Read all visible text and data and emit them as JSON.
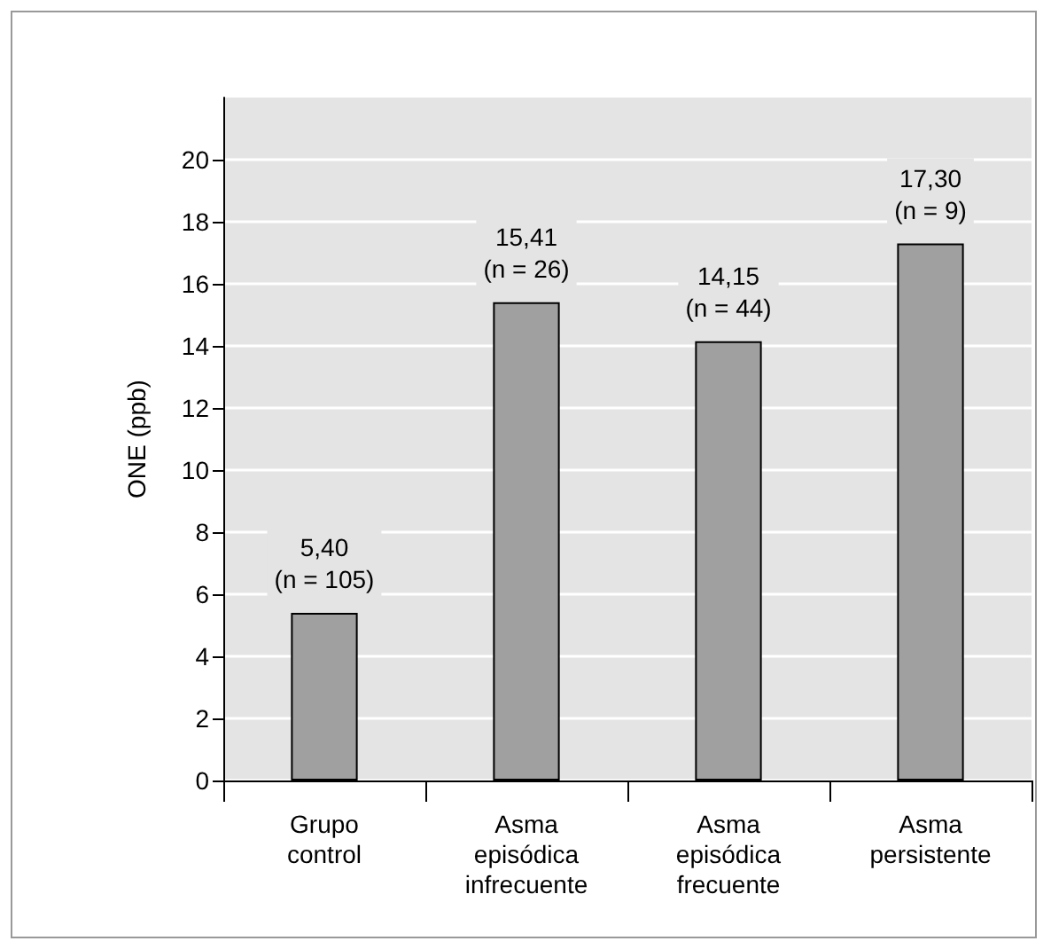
{
  "chart_data": {
    "type": "bar",
    "ylabel": "ONE (ppb)",
    "categories": [
      "Grupo\ncontrol",
      "Asma\nepisódica\ninfrecuente",
      "Asma\nepisódica\nfrecuente",
      "Asma\npersistente"
    ],
    "values": [
      5.4,
      15.41,
      14.15,
      17.3
    ],
    "value_labels": [
      "5,40\n(n = 105)",
      "15,41\n(n = 26)",
      "14,15\n(n = 44)",
      "17,30\n(n = 9)"
    ],
    "color": "#a0a0a0",
    "ylim": [
      0,
      22
    ],
    "yticks": [
      0,
      2,
      4,
      6,
      8,
      10,
      12,
      14,
      16,
      18,
      20
    ],
    "grid": "y"
  }
}
